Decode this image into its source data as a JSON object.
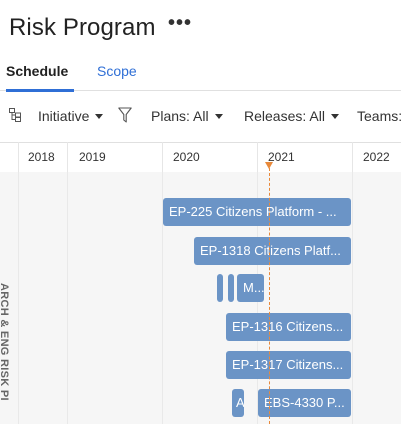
{
  "header": {
    "title": "Risk Program",
    "more_label": "•••"
  },
  "tabs": [
    {
      "label": "Schedule",
      "active": true
    },
    {
      "label": "Scope",
      "active": false
    }
  ],
  "toolbar": {
    "hierarchy_icon": "hierarchy-icon",
    "initiative_label": "Initiative",
    "filter_icon": "filter-icon",
    "plans_label": "Plans: All",
    "releases_label": "Releases: All",
    "teams_label": "Teams:"
  },
  "timeline": {
    "years": [
      "2018",
      "2019",
      "2020",
      "2021",
      "2022"
    ],
    "today_marker_color": "#e8893a"
  },
  "group": {
    "label": "ARCH & ENG RISK PI"
  },
  "bars": [
    {
      "label": "EP-225 Citizens Platform - ..."
    },
    {
      "label": "EP-1318 Citizens Platf..."
    },
    {
      "label": ""
    },
    {
      "label": ""
    },
    {
      "label": "M..."
    },
    {
      "label": "EP-1316 Citizens..."
    },
    {
      "label": "EP-1317 Citizens..."
    },
    {
      "label": "A"
    },
    {
      "label": "EBS-4330 P..."
    }
  ],
  "colors": {
    "bar": "#6b94c6",
    "accent": "#2f6fd6"
  }
}
